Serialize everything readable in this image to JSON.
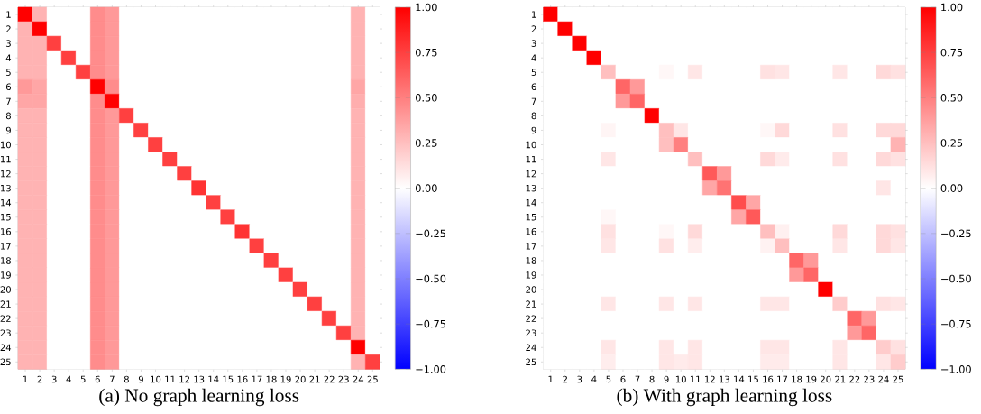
{
  "chart_data": [
    {
      "type": "heatmap",
      "xlabel": "(a) No graph learning loss",
      "categories": [
        "1",
        "2",
        "3",
        "4",
        "5",
        "6",
        "7",
        "8",
        "9",
        "10",
        "11",
        "12",
        "13",
        "14",
        "15",
        "16",
        "17",
        "18",
        "19",
        "20",
        "21",
        "22",
        "23",
        "24",
        "25"
      ],
      "y_categories": [
        "1",
        "2",
        "3",
        "4",
        "5",
        "6",
        "7",
        "8",
        "9",
        "10",
        "11",
        "12",
        "13",
        "14",
        "15",
        "16",
        "17",
        "18",
        "19",
        "20",
        "21",
        "22",
        "23",
        "24",
        "25"
      ],
      "cells": [
        [
          1,
          0.3,
          0,
          0,
          0,
          0.45,
          0.4,
          0,
          0,
          0,
          0,
          0,
          0,
          0,
          0,
          0,
          0,
          0,
          0,
          0,
          0,
          0,
          0,
          0.3,
          0
        ],
        [
          0.3,
          1,
          0,
          0,
          0,
          0.45,
          0.4,
          0,
          0,
          0,
          0,
          0,
          0,
          0,
          0,
          0,
          0,
          0,
          0,
          0,
          0,
          0,
          0,
          0.3,
          0
        ],
        [
          0.3,
          0.3,
          0.75,
          0,
          0,
          0.45,
          0.4,
          0,
          0,
          0,
          0,
          0,
          0,
          0,
          0,
          0,
          0,
          0,
          0,
          0,
          0,
          0,
          0,
          0.3,
          0
        ],
        [
          0.3,
          0.3,
          0,
          0.75,
          0,
          0.45,
          0.4,
          0,
          0,
          0,
          0,
          0,
          0,
          0,
          0,
          0,
          0,
          0,
          0,
          0,
          0,
          0,
          0,
          0.3,
          0
        ],
        [
          0.3,
          0.3,
          0,
          0,
          0.75,
          0.45,
          0.4,
          0,
          0,
          0,
          0,
          0,
          0,
          0,
          0,
          0,
          0,
          0,
          0,
          0,
          0,
          0,
          0,
          0.3,
          0
        ],
        [
          0.4,
          0.35,
          0,
          0,
          0,
          1,
          0.45,
          0,
          0,
          0,
          0,
          0,
          0,
          0,
          0,
          0,
          0,
          0,
          0,
          0,
          0,
          0,
          0,
          0.35,
          0
        ],
        [
          0.35,
          0.35,
          0,
          0,
          0,
          0.45,
          1,
          0,
          0,
          0,
          0,
          0,
          0,
          0,
          0,
          0,
          0,
          0,
          0,
          0,
          0,
          0,
          0,
          0.32,
          0
        ],
        [
          0.3,
          0.3,
          0,
          0,
          0,
          0.45,
          0.4,
          0.75,
          0,
          0,
          0,
          0,
          0,
          0,
          0,
          0,
          0,
          0,
          0,
          0,
          0,
          0,
          0,
          0.3,
          0
        ],
        [
          0.3,
          0.3,
          0,
          0,
          0,
          0.45,
          0.4,
          0,
          0.75,
          0,
          0,
          0,
          0,
          0,
          0,
          0,
          0,
          0,
          0,
          0,
          0,
          0,
          0,
          0.3,
          0
        ],
        [
          0.3,
          0.3,
          0,
          0,
          0,
          0.45,
          0.4,
          0,
          0,
          0.75,
          0,
          0,
          0,
          0,
          0,
          0,
          0,
          0,
          0,
          0,
          0,
          0,
          0,
          0.3,
          0
        ],
        [
          0.3,
          0.3,
          0,
          0,
          0,
          0.45,
          0.4,
          0,
          0,
          0,
          0.75,
          0,
          0,
          0,
          0,
          0,
          0,
          0,
          0,
          0,
          0,
          0,
          0,
          0.3,
          0
        ],
        [
          0.3,
          0.3,
          0,
          0,
          0,
          0.45,
          0.4,
          0,
          0,
          0,
          0,
          0.75,
          0,
          0,
          0,
          0,
          0,
          0,
          0,
          0,
          0,
          0,
          0,
          0.3,
          0
        ],
        [
          0.3,
          0.3,
          0,
          0,
          0,
          0.45,
          0.4,
          0,
          0,
          0,
          0,
          0,
          0.8,
          0,
          0,
          0,
          0,
          0,
          0,
          0,
          0,
          0,
          0,
          0.3,
          0
        ],
        [
          0.3,
          0.3,
          0,
          0,
          0,
          0.45,
          0.4,
          0,
          0,
          0,
          0,
          0,
          0,
          0.75,
          0,
          0,
          0,
          0,
          0,
          0,
          0,
          0,
          0,
          0.3,
          0
        ],
        [
          0.3,
          0.3,
          0,
          0,
          0,
          0.45,
          0.4,
          0,
          0,
          0,
          0,
          0,
          0,
          0,
          0.75,
          0,
          0,
          0,
          0,
          0,
          0,
          0,
          0,
          0.3,
          0
        ],
        [
          0.3,
          0.3,
          0,
          0,
          0,
          0.45,
          0.4,
          0,
          0,
          0,
          0,
          0,
          0,
          0,
          0,
          0.8,
          0,
          0,
          0,
          0,
          0,
          0,
          0,
          0.3,
          0
        ],
        [
          0.3,
          0.3,
          0,
          0,
          0,
          0.45,
          0.4,
          0,
          0,
          0,
          0,
          0,
          0,
          0,
          0,
          0,
          0.75,
          0,
          0,
          0,
          0,
          0,
          0,
          0.3,
          0
        ],
        [
          0.3,
          0.3,
          0,
          0,
          0,
          0.45,
          0.4,
          0,
          0,
          0,
          0,
          0,
          0,
          0,
          0,
          0,
          0,
          0.75,
          0,
          0,
          0,
          0,
          0,
          0.3,
          0
        ],
        [
          0.3,
          0.3,
          0,
          0,
          0,
          0.45,
          0.4,
          0,
          0,
          0,
          0,
          0,
          0,
          0,
          0,
          0,
          0,
          0,
          0.75,
          0,
          0,
          0,
          0,
          0.3,
          0
        ],
        [
          0.3,
          0.3,
          0,
          0,
          0,
          0.45,
          0.4,
          0,
          0,
          0,
          0,
          0,
          0,
          0,
          0,
          0,
          0,
          0,
          0,
          0.75,
          0,
          0,
          0,
          0.3,
          0
        ],
        [
          0.3,
          0.3,
          0,
          0,
          0,
          0.45,
          0.4,
          0,
          0,
          0,
          0,
          0,
          0,
          0,
          0,
          0,
          0,
          0,
          0,
          0,
          0.75,
          0,
          0,
          0.3,
          0
        ],
        [
          0.3,
          0.3,
          0,
          0,
          0,
          0.45,
          0.4,
          0,
          0,
          0,
          0,
          0,
          0,
          0,
          0,
          0,
          0,
          0,
          0,
          0,
          0,
          0.75,
          0,
          0.3,
          0
        ],
        [
          0.3,
          0.3,
          0,
          0,
          0,
          0.45,
          0.4,
          0,
          0,
          0,
          0,
          0,
          0,
          0,
          0,
          0,
          0,
          0,
          0,
          0,
          0,
          0,
          0.75,
          0.3,
          0
        ],
        [
          0.3,
          0.3,
          0,
          0,
          0,
          0.45,
          0.4,
          0,
          0,
          0,
          0,
          0,
          0,
          0,
          0,
          0,
          0,
          0,
          0,
          0,
          0,
          0,
          0,
          1,
          0
        ],
        [
          0.3,
          0.3,
          0,
          0,
          0,
          0.45,
          0.4,
          0,
          0,
          0,
          0,
          0,
          0,
          0,
          0,
          0,
          0,
          0,
          0,
          0,
          0,
          0,
          0,
          0.3,
          0.75
        ]
      ],
      "clim": [
        -1,
        1
      ],
      "cticks": [
        {
          "value": -1,
          "label": "−1.00"
        },
        {
          "value": -0.75,
          "label": "−0.75"
        },
        {
          "value": -0.5,
          "label": "−0.50"
        },
        {
          "value": -0.25,
          "label": "−0.25"
        },
        {
          "value": 0,
          "label": "0.00"
        },
        {
          "value": 0.25,
          "label": "0.25"
        },
        {
          "value": 0.5,
          "label": "0.50"
        },
        {
          "value": 0.75,
          "label": "0.75"
        },
        {
          "value": 1,
          "label": "1.00"
        }
      ]
    },
    {
      "type": "heatmap",
      "xlabel": "(b) With graph learning loss",
      "categories": [
        "1",
        "2",
        "3",
        "4",
        "5",
        "6",
        "7",
        "8",
        "9",
        "10",
        "11",
        "12",
        "13",
        "14",
        "15",
        "16",
        "17",
        "18",
        "19",
        "20",
        "21",
        "22",
        "23",
        "24",
        "25"
      ],
      "y_categories": [
        "1",
        "2",
        "3",
        "4",
        "5",
        "6",
        "7",
        "8",
        "9",
        "10",
        "11",
        "12",
        "13",
        "14",
        "15",
        "16",
        "17",
        "18",
        "19",
        "20",
        "21",
        "22",
        "23",
        "24",
        "25"
      ],
      "cells": [
        [
          1,
          0,
          0,
          0,
          0,
          0,
          0,
          0,
          0,
          0,
          0,
          0,
          0,
          0,
          0,
          0,
          0,
          0,
          0,
          0,
          0,
          0,
          0,
          0,
          0
        ],
        [
          0,
          1,
          0,
          0,
          0,
          0,
          0,
          0,
          0,
          0,
          0,
          0,
          0,
          0,
          0,
          0,
          0,
          0,
          0,
          0,
          0,
          0,
          0,
          0,
          0
        ],
        [
          0,
          0,
          1,
          0,
          0,
          0,
          0,
          0,
          0,
          0,
          0,
          0,
          0,
          0,
          0,
          0,
          0,
          0,
          0,
          0,
          0,
          0,
          0,
          0,
          0
        ],
        [
          0,
          0,
          0,
          1,
          0,
          0,
          0,
          0,
          0,
          0,
          0,
          0,
          0,
          0,
          0,
          0,
          0,
          0,
          0,
          0,
          0,
          0,
          0,
          0,
          0
        ],
        [
          0,
          0,
          0,
          0,
          0.25,
          0,
          0,
          0,
          0.03,
          0,
          0.1,
          0,
          0,
          0,
          0,
          0.12,
          0.1,
          0,
          0,
          0,
          0.1,
          0,
          0,
          0.15,
          0.12
        ],
        [
          0,
          0,
          0,
          0,
          0,
          0.6,
          0.4,
          0,
          0,
          0,
          0,
          0,
          0,
          0,
          0,
          0,
          0,
          0,
          0,
          0,
          0,
          0,
          0,
          0,
          0
        ],
        [
          0,
          0,
          0,
          0,
          0,
          0.4,
          0.6,
          0,
          0,
          0,
          0,
          0,
          0,
          0,
          0,
          0,
          0,
          0,
          0,
          0,
          0,
          0,
          0,
          0,
          0
        ],
        [
          0,
          0,
          0,
          0,
          0,
          0,
          0,
          1,
          0,
          0,
          0,
          0,
          0,
          0,
          0,
          0,
          0,
          0,
          0,
          0,
          0,
          0,
          0,
          0,
          0
        ],
        [
          0,
          0,
          0,
          0,
          0.04,
          0,
          0,
          0,
          0.25,
          0.1,
          0,
          0,
          0,
          0,
          0,
          0.03,
          0.15,
          0,
          0,
          0,
          0.12,
          0,
          0,
          0.15,
          0.15
        ],
        [
          0,
          0,
          0,
          0,
          0,
          0,
          0,
          0,
          0.25,
          0.5,
          0,
          0,
          0,
          0,
          0,
          0,
          0,
          0,
          0,
          0,
          0,
          0,
          0,
          0,
          0.3
        ],
        [
          0,
          0,
          0,
          0,
          0.1,
          0,
          0,
          0,
          0,
          0,
          0.25,
          0,
          0,
          0,
          0,
          0.15,
          0.08,
          0,
          0,
          0,
          0.12,
          0,
          0,
          0.15,
          0.12
        ],
        [
          0,
          0,
          0,
          0,
          0,
          0,
          0,
          0,
          0,
          0,
          0,
          0.65,
          0.4,
          0,
          0,
          0,
          0,
          0,
          0,
          0,
          0,
          0,
          0,
          0,
          0
        ],
        [
          0,
          0,
          0,
          0,
          0,
          0,
          0,
          0,
          0,
          0,
          0,
          0.35,
          0.55,
          0,
          0,
          0,
          0,
          0,
          0,
          0,
          0,
          0,
          0,
          0.1,
          0
        ],
        [
          0,
          0,
          0,
          0,
          0,
          0,
          0,
          0,
          0,
          0,
          0,
          0,
          0,
          0.7,
          0.35,
          0,
          0,
          0,
          0,
          0,
          0,
          0,
          0,
          0,
          0
        ],
        [
          0,
          0,
          0,
          0,
          0.03,
          0,
          0,
          0,
          0,
          0,
          0,
          0,
          0,
          0.35,
          0.65,
          0,
          0,
          0,
          0,
          0,
          0,
          0,
          0,
          0,
          0
        ],
        [
          0,
          0,
          0,
          0,
          0.12,
          0,
          0,
          0,
          0.03,
          0,
          0.15,
          0,
          0,
          0,
          0,
          0.25,
          0.06,
          0,
          0,
          0,
          0.15,
          0,
          0,
          0.15,
          0.12
        ],
        [
          0,
          0,
          0,
          0,
          0.1,
          0,
          0,
          0,
          0.12,
          0,
          0.07,
          0,
          0,
          0,
          0,
          0.05,
          0.25,
          0,
          0,
          0,
          0.1,
          0,
          0,
          0.15,
          0.1
        ],
        [
          0,
          0,
          0,
          0,
          0,
          0,
          0,
          0,
          0,
          0,
          0,
          0,
          0,
          0,
          0,
          0,
          0,
          0.6,
          0.4,
          0,
          0,
          0,
          0,
          0,
          0
        ],
        [
          0,
          0,
          0,
          0,
          0,
          0,
          0,
          0,
          0,
          0,
          0,
          0,
          0,
          0,
          0,
          0,
          0,
          0.4,
          0.6,
          0,
          0,
          0,
          0,
          0,
          0
        ],
        [
          0,
          0,
          0,
          0,
          0,
          0,
          0,
          0,
          0,
          0,
          0,
          0,
          0,
          0,
          0,
          0,
          0,
          0,
          0,
          1,
          0,
          0,
          0,
          0,
          0
        ],
        [
          0,
          0,
          0,
          0,
          0.1,
          0,
          0,
          0,
          0.1,
          0,
          0.1,
          0,
          0,
          0,
          0,
          0.1,
          0.1,
          0,
          0,
          0,
          0.2,
          0,
          0,
          0.12,
          0.1
        ],
        [
          0,
          0,
          0,
          0,
          0,
          0,
          0,
          0,
          0,
          0,
          0,
          0,
          0,
          0,
          0,
          0,
          0,
          0,
          0,
          0,
          0,
          0.6,
          0.4,
          0,
          0
        ],
        [
          0,
          0,
          0,
          0,
          0,
          0,
          0,
          0,
          0,
          0,
          0,
          0,
          0,
          0,
          0,
          0,
          0,
          0,
          0,
          0,
          0,
          0.4,
          0.6,
          0,
          0
        ],
        [
          0,
          0,
          0,
          0,
          0.1,
          0,
          0,
          0,
          0.1,
          0,
          0.1,
          0,
          0,
          0,
          0,
          0.1,
          0.1,
          0,
          0,
          0,
          0.1,
          0,
          0,
          0.2,
          0.12
        ],
        [
          0,
          0,
          0,
          0,
          0.07,
          0,
          0,
          0,
          0.1,
          0.08,
          0.1,
          0,
          0,
          0,
          0,
          0.08,
          0.08,
          0,
          0,
          0,
          0.1,
          0,
          0,
          0.1,
          0.2
        ]
      ],
      "clim": [
        -1,
        1
      ],
      "cticks": [
        {
          "value": -1,
          "label": "−1.00"
        },
        {
          "value": -0.75,
          "label": "−0.75"
        },
        {
          "value": -0.5,
          "label": "−0.50"
        },
        {
          "value": -0.25,
          "label": "−0.25"
        },
        {
          "value": 0,
          "label": "0.00"
        },
        {
          "value": 0.25,
          "label": "0.25"
        },
        {
          "value": 0.5,
          "label": "0.50"
        },
        {
          "value": 0.75,
          "label": "0.75"
        },
        {
          "value": 1,
          "label": "1.00"
        }
      ]
    }
  ]
}
